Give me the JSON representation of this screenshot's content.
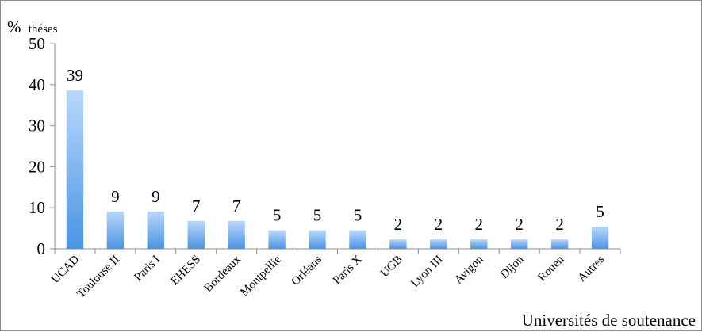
{
  "chart_data": {
    "type": "bar",
    "ylabel": "%",
    "ylabel_suffix": "théses",
    "xlabel": "Universités de soutenance",
    "ylim": [
      0,
      50
    ],
    "yticks": [
      0,
      10,
      20,
      30,
      40,
      50
    ],
    "categories": [
      "UCAD",
      "Toulouse II",
      "Paris I",
      "EHESS",
      "Bordeaux",
      "Montpellie",
      "Orléans",
      "Paris X",
      "UGB",
      "Lyon III",
      "Avigon",
      "Dijon",
      "Rouen",
      "Autres"
    ],
    "values": [
      38.6,
      9.1,
      9.1,
      6.8,
      6.8,
      4.5,
      4.5,
      4.5,
      2.3,
      2.3,
      2.3,
      2.3,
      2.3,
      5.4
    ],
    "data_labels": [
      "39",
      "9",
      "9",
      "7",
      "7",
      "5",
      "5",
      "5",
      "2",
      "2",
      "2",
      "2",
      "2",
      "5"
    ],
    "grid": false,
    "legend": "none",
    "bar_color_top": "#b9d8fb",
    "bar_color_bottom": "#4a94e3"
  }
}
